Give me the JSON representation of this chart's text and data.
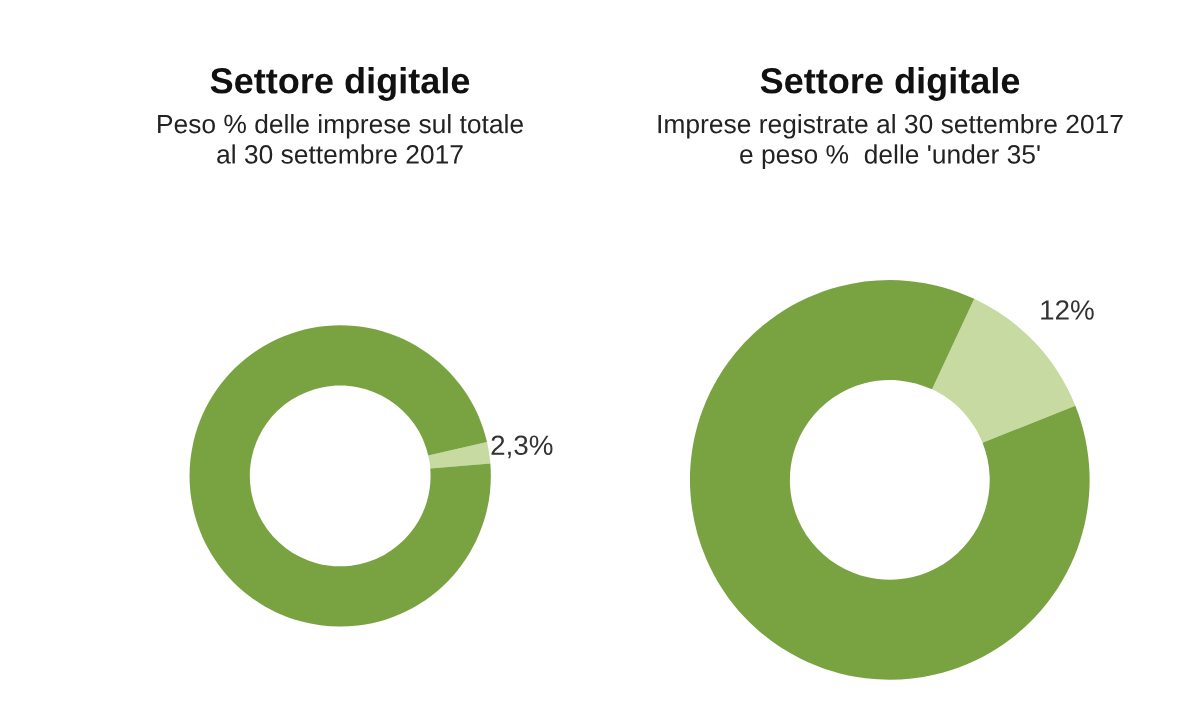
{
  "chart_data": [
    {
      "type": "donut",
      "title": "Settore digitale",
      "subtitle": "Peso % delle imprese sul totale\nal 30 settembre 2017",
      "categories": [
        null,
        null
      ],
      "values": [
        2.3,
        97.7
      ],
      "colors": [
        "#c6daa2",
        "#79a341"
      ],
      "value_labels": [
        "2,3%",
        null
      ]
    },
    {
      "type": "donut",
      "title": "Settore digitale",
      "subtitle": "Imprese registrate al 30 settembre 2017\ne peso %  delle 'under 35'",
      "categories": [
        null,
        null
      ],
      "values": [
        12,
        88
      ],
      "colors": [
        "#c6daa2",
        "#79a341"
      ],
      "value_labels": [
        "12%",
        null
      ]
    }
  ]
}
